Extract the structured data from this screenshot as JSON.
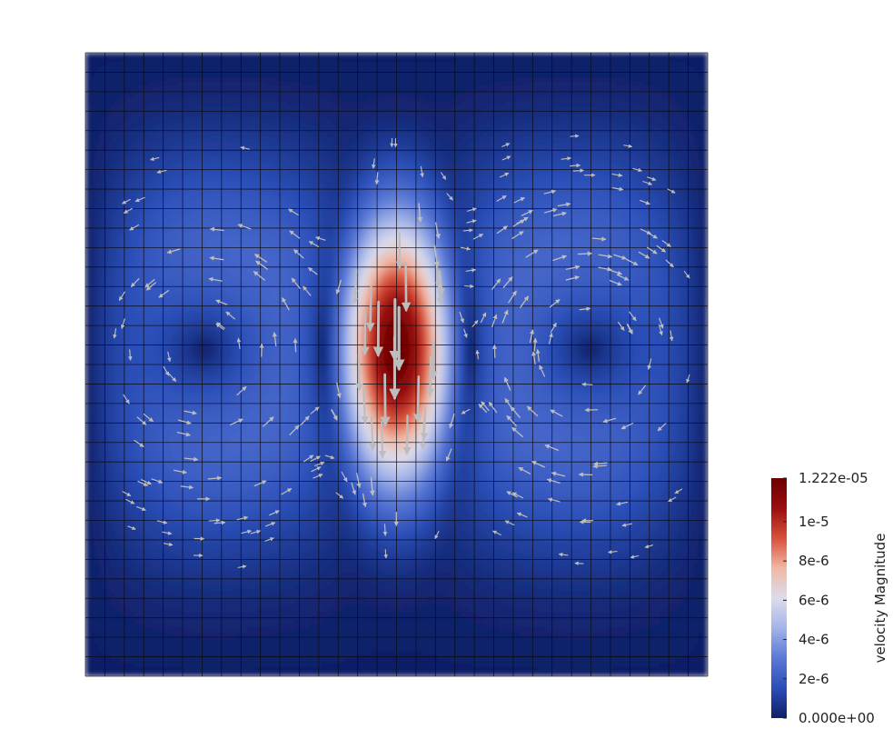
{
  "chart_data": {
    "type": "heatmap",
    "title": "",
    "field": "velocity Magnitude",
    "colorbar": {
      "title": "velocity Magnitude",
      "min": 0.0,
      "max": 1.222e-05,
      "min_label": "0.000e+00",
      "max_label": "1.222e-05",
      "ticks": [
        {
          "value": 2e-06,
          "label": "2e-6"
        },
        {
          "value": 4e-06,
          "label": "4e-6"
        },
        {
          "value": 6e-06,
          "label": "6e-6"
        },
        {
          "value": 8e-06,
          "label": "8e-6"
        },
        {
          "value": 1e-05,
          "label": "1e-5"
        }
      ],
      "placement": "bottom-right",
      "colormap": "Cool to Warm (extended)",
      "colormap_stops": [
        "#0f1f66",
        "#2b4fb8",
        "#5a78d6",
        "#a4b4e8",
        "#dcdcec",
        "#f0b8a4",
        "#d8503a",
        "#9a0f0f",
        "#6b0000"
      ]
    },
    "mesh": {
      "cells_x": 32,
      "cells_y": 32
    },
    "glyphs": {
      "type": "arrow",
      "color": "#bdbdbd",
      "scaled_by": "velocity Magnitude"
    },
    "features": {
      "downward_jet_peak": 1.222e-05,
      "vortex_pair": "counter-rotating"
    }
  }
}
